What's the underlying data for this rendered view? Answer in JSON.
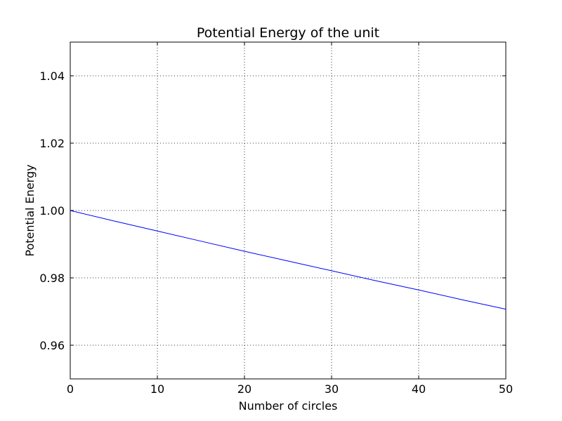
{
  "chart_data": {
    "type": "line",
    "title": "Potential Energy of the unit",
    "xlabel": "Number of circles",
    "ylabel": "Potential Energy",
    "xlim": [
      0,
      50
    ],
    "ylim": [
      0.95,
      1.05
    ],
    "x_ticks": [
      0,
      10,
      20,
      30,
      40,
      50
    ],
    "x_tick_labels": [
      "0",
      "10",
      "20",
      "30",
      "40",
      "50"
    ],
    "y_ticks": [
      0.96,
      0.98,
      1.0,
      1.02,
      1.04
    ],
    "y_tick_labels": [
      "0.96",
      "0.98",
      "1.00",
      "1.02",
      "1.04"
    ],
    "grid": true,
    "series": [
      {
        "color": "#0000ff",
        "x": [
          0,
          5,
          10,
          15,
          20,
          25,
          30,
          35,
          40,
          45,
          50
        ],
        "values": [
          1.0,
          0.9969,
          0.9939,
          0.9909,
          0.9879,
          0.985,
          0.9821,
          0.9792,
          0.9764,
          0.9735,
          0.9707
        ]
      }
    ]
  }
}
